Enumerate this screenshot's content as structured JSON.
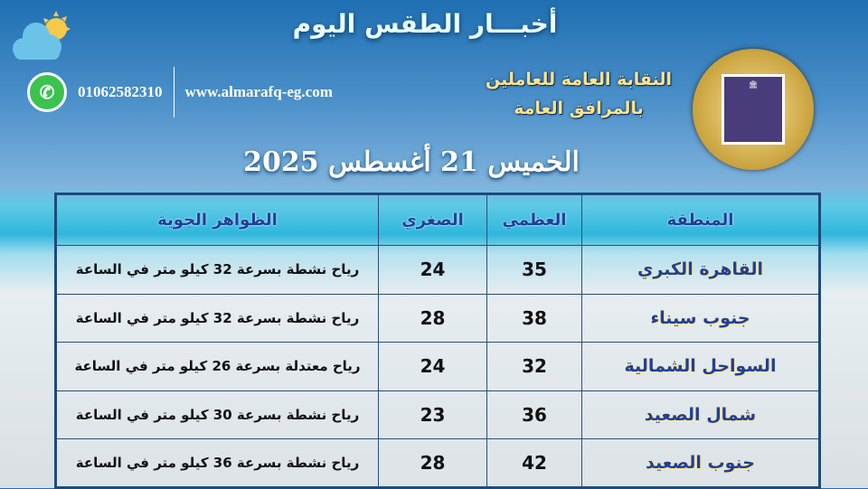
{
  "header": {
    "title": "أخبـــار الطقس اليوم",
    "org_line1": "النقابة العامة للعاملين",
    "org_line2": "بالمرافق العامة",
    "date": "الخميس 21 أغسطس 2025"
  },
  "contact": {
    "phone": "01062582310",
    "website": "www.almarafq-eg.com"
  },
  "logo": {
    "text": "النقابة العامة للعاملين بالمرافق العامة"
  },
  "table": {
    "headers": [
      "المنطقة",
      "العظمي",
      "الصغري",
      "الظواهر الجوية"
    ],
    "rows": [
      [
        "القاهرة الكبري",
        "35",
        "24",
        "رياح نشطة بسرعة 32 كيلو متر في الساعة"
      ],
      [
        "جنوب سيناء",
        "38",
        "28",
        "رياح نشطة بسرعة 32 كيلو متر في الساعة"
      ],
      [
        "السواحل الشمالية",
        "32",
        "24",
        "رياح معتدلة بسرعة 26 كيلو متر في الساعة"
      ],
      [
        "شمال الصعيد",
        "36",
        "23",
        "رياح نشطة بسرعة 30 كيلو متر في الساعة"
      ],
      [
        "جنوب الصعيد",
        "42",
        "28",
        "رياح نشطة بسرعة 36 كيلو متر في الساعة"
      ]
    ]
  },
  "colors": {
    "region_text": "#1e3f9a",
    "org_text": "#ffe48a",
    "whatsapp": "#3bc24f"
  }
}
